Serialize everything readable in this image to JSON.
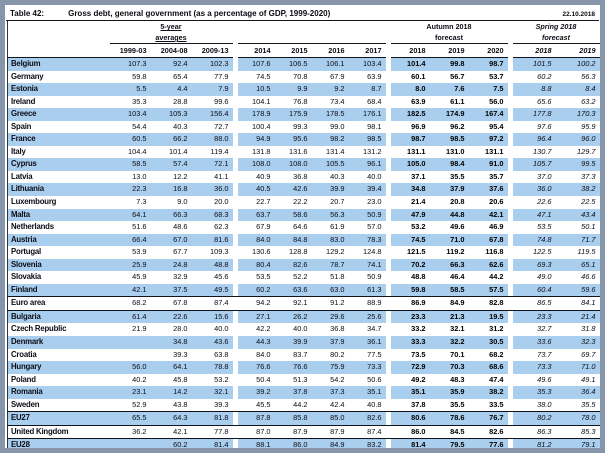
{
  "meta": {
    "table_label": "Table 42:",
    "title": "Gross debt, general government (as a percentage of GDP, 1999-2020)",
    "date": "22.10.2018"
  },
  "colors": {
    "row_highlight": "#aacfee",
    "frame": "#8795ab",
    "rule_line": "#14141c",
    "text": "#0c0c16"
  },
  "header": {
    "averages_line1": "5-year",
    "averages_line2": "averages",
    "autumn_line1": "Autumn 2018",
    "autumn_line2": "forecast",
    "spring_line1": "Spring 2018",
    "spring_line2": "forecast",
    "years": [
      "1999-03",
      "2004-08",
      "2009-13",
      "2014",
      "2015",
      "2016",
      "2017",
      "2018",
      "2019",
      "2020",
      "2018",
      "2019"
    ]
  },
  "table": {
    "rows": [
      {
        "name": "Belgium",
        "highlight": true,
        "sep": false,
        "values": [
          "107.3",
          "92.4",
          "102.3",
          "107.6",
          "106.5",
          "106.1",
          "103.4",
          "101.4",
          "99.8",
          "98.7",
          "101.5",
          "100.2"
        ]
      },
      {
        "name": "Germany",
        "highlight": false,
        "sep": false,
        "values": [
          "59.8",
          "65.4",
          "77.9",
          "74.5",
          "70.8",
          "67.9",
          "63.9",
          "60.1",
          "56.7",
          "53.7",
          "60.2",
          "56.3"
        ]
      },
      {
        "name": "Estonia",
        "highlight": true,
        "sep": false,
        "values": [
          "5.5",
          "4.4",
          "7.9",
          "10.5",
          "9.9",
          "9.2",
          "8.7",
          "8.0",
          "7.6",
          "7.5",
          "8.8",
          "8.4"
        ]
      },
      {
        "name": "Ireland",
        "highlight": false,
        "sep": false,
        "values": [
          "35.3",
          "28.8",
          "99.6",
          "104.1",
          "76.8",
          "73.4",
          "68.4",
          "63.9",
          "61.1",
          "56.0",
          "65.6",
          "63.2"
        ]
      },
      {
        "name": "Greece",
        "highlight": true,
        "sep": false,
        "values": [
          "103.4",
          "105.3",
          "156.4",
          "178.9",
          "175.9",
          "178.5",
          "176.1",
          "182.5",
          "174.9",
          "167.4",
          "177.8",
          "170.3"
        ]
      },
      {
        "name": "Spain",
        "highlight": false,
        "sep": false,
        "values": [
          "54.4",
          "40.3",
          "72.7",
          "100.4",
          "99.3",
          "99.0",
          "98.1",
          "96.9",
          "96.2",
          "95.4",
          "97.6",
          "95.9"
        ]
      },
      {
        "name": "France",
        "highlight": true,
        "sep": false,
        "values": [
          "60.5",
          "66.2",
          "88.0",
          "94.9",
          "95.6",
          "98.2",
          "98.5",
          "98.7",
          "98.5",
          "97.2",
          "96.4",
          "96.0"
        ]
      },
      {
        "name": "Italy",
        "highlight": false,
        "sep": false,
        "values": [
          "104.4",
          "101.4",
          "119.4",
          "131.8",
          "131.6",
          "131.4",
          "131.2",
          "131.1",
          "131.0",
          "131.1",
          "130.7",
          "129.7"
        ]
      },
      {
        "name": "Cyprus",
        "highlight": true,
        "sep": false,
        "values": [
          "58.5",
          "57.4",
          "72.1",
          "108.0",
          "108.0",
          "105.5",
          "96.1",
          "105.0",
          "98.4",
          "91.0",
          "105.7",
          "99.5"
        ]
      },
      {
        "name": "Latvia",
        "highlight": false,
        "sep": false,
        "values": [
          "13.0",
          "12.2",
          "41.1",
          "40.9",
          "36.8",
          "40.3",
          "40.0",
          "37.1",
          "35.5",
          "35.7",
          "37.0",
          "37.3"
        ]
      },
      {
        "name": "Lithuania",
        "highlight": true,
        "sep": false,
        "values": [
          "22.3",
          "16.8",
          "36.0",
          "40.5",
          "42.6",
          "39.9",
          "39.4",
          "34.8",
          "37.9",
          "37.6",
          "36.0",
          "38.2"
        ]
      },
      {
        "name": "Luxembourg",
        "highlight": false,
        "sep": false,
        "values": [
          "7.3",
          "9.0",
          "20.0",
          "22.7",
          "22.2",
          "20.7",
          "23.0",
          "21.4",
          "20.8",
          "20.6",
          "22.6",
          "22.5"
        ]
      },
      {
        "name": "Malta",
        "highlight": true,
        "sep": false,
        "values": [
          "64.1",
          "66.3",
          "68.3",
          "63.7",
          "58.6",
          "56.3",
          "50.9",
          "47.9",
          "44.8",
          "42.1",
          "47.1",
          "43.4"
        ]
      },
      {
        "name": "Netherlands",
        "highlight": false,
        "sep": false,
        "values": [
          "51.6",
          "48.6",
          "62.3",
          "67.9",
          "64.6",
          "61.9",
          "57.0",
          "53.2",
          "49.6",
          "46.9",
          "53.5",
          "50.1"
        ]
      },
      {
        "name": "Austria",
        "highlight": true,
        "sep": false,
        "values": [
          "66.4",
          "67.0",
          "81.6",
          "84.0",
          "84.8",
          "83.0",
          "78.3",
          "74.5",
          "71.0",
          "67.8",
          "74.8",
          "71.7"
        ]
      },
      {
        "name": "Portugal",
        "highlight": false,
        "sep": false,
        "values": [
          "53.9",
          "67.7",
          "109.3",
          "130.6",
          "128.8",
          "129.2",
          "124.8",
          "121.5",
          "119.2",
          "116.8",
          "122.5",
          "119.5"
        ]
      },
      {
        "name": "Slovenia",
        "highlight": true,
        "sep": false,
        "values": [
          "25.9",
          "24.8",
          "48.8",
          "80.4",
          "82.6",
          "78.7",
          "74.1",
          "70.2",
          "66.3",
          "62.6",
          "69.3",
          "65.1"
        ]
      },
      {
        "name": "Slovakia",
        "highlight": false,
        "sep": false,
        "values": [
          "45.9",
          "32.9",
          "45.6",
          "53.5",
          "52.2",
          "51.8",
          "50.9",
          "48.8",
          "46.4",
          "44.2",
          "49.0",
          "46.6"
        ]
      },
      {
        "name": "Finland",
        "highlight": true,
        "sep": false,
        "values": [
          "42.1",
          "37.5",
          "49.5",
          "60.2",
          "63.6",
          "63.0",
          "61.3",
          "59.8",
          "58.5",
          "57.5",
          "60.4",
          "59.6"
        ]
      },
      {
        "name": "Euro area",
        "highlight": false,
        "sep": true,
        "values": [
          "68.2",
          "67.8",
          "87.4",
          "94.2",
          "92.1",
          "91.2",
          "88.9",
          "86.9",
          "84.9",
          "82.8",
          "86.5",
          "84.1"
        ]
      },
      {
        "name": "Bulgaria",
        "highlight": true,
        "sep": true,
        "values": [
          "61.4",
          "22.6",
          "15.6",
          "27.1",
          "26.2",
          "29.6",
          "25.6",
          "23.3",
          "21.3",
          "19.5",
          "23.3",
          "21.4"
        ]
      },
      {
        "name": "Czech Republic",
        "highlight": false,
        "sep": false,
        "values": [
          "21.9",
          "28.0",
          "40.0",
          "42.2",
          "40.0",
          "36.8",
          "34.7",
          "33.2",
          "32.1",
          "31.2",
          "32.7",
          "31.8"
        ]
      },
      {
        "name": "Denmark",
        "highlight": true,
        "sep": false,
        "values": [
          "",
          "34.8",
          "43.6",
          "44.3",
          "39.9",
          "37.9",
          "36.1",
          "33.3",
          "32.2",
          "30.5",
          "33.6",
          "32.3"
        ]
      },
      {
        "name": "Croatia",
        "highlight": false,
        "sep": false,
        "values": [
          "",
          "39.3",
          "63.8",
          "84.0",
          "83.7",
          "80.2",
          "77.5",
          "73.5",
          "70.1",
          "68.2",
          "73.7",
          "69.7"
        ]
      },
      {
        "name": "Hungary",
        "highlight": true,
        "sep": false,
        "values": [
          "56.0",
          "64.1",
          "78.8",
          "76.6",
          "76.6",
          "75.9",
          "73.3",
          "72.9",
          "70.3",
          "68.6",
          "73.3",
          "71.0"
        ]
      },
      {
        "name": "Poland",
        "highlight": false,
        "sep": false,
        "values": [
          "40.2",
          "45.8",
          "53.2",
          "50.4",
          "51.3",
          "54.2",
          "50.6",
          "49.2",
          "48.3",
          "47.4",
          "49.6",
          "49.1"
        ]
      },
      {
        "name": "Romania",
        "highlight": true,
        "sep": false,
        "values": [
          "23.1",
          "14.2",
          "32.1",
          "39.2",
          "37.8",
          "37.3",
          "35.1",
          "35.1",
          "35.9",
          "38.2",
          "35.3",
          "36.4"
        ]
      },
      {
        "name": "Sweden",
        "highlight": false,
        "sep": false,
        "values": [
          "52.9",
          "43.8",
          "39.3",
          "45.5",
          "44.2",
          "42.4",
          "40.8",
          "37.8",
          "35.5",
          "33.5",
          "38.0",
          "35.5"
        ]
      },
      {
        "name": "EU27",
        "highlight": true,
        "sep": true,
        "values": [
          "65.5",
          "64.3",
          "81.8",
          "87.8",
          "85.8",
          "85.0",
          "82.6",
          "80.6",
          "78.6",
          "76.7",
          "80.2",
          "78.0"
        ]
      },
      {
        "name": "United Kingdom",
        "highlight": false,
        "sep": true,
        "values": [
          "36.2",
          "42.1",
          "77.8",
          "87.0",
          "87.9",
          "87.9",
          "87.4",
          "86.0",
          "84.5",
          "82.6",
          "86.3",
          "85.3"
        ]
      },
      {
        "name": "EU28",
        "highlight": true,
        "sep": true,
        "last": true,
        "values": [
          "",
          "60.2",
          "81.4",
          "88.1",
          "86.0",
          "84.9",
          "83.2",
          "81.4",
          "79.5",
          "77.6",
          "81.2",
          "79.1"
        ]
      }
    ]
  }
}
